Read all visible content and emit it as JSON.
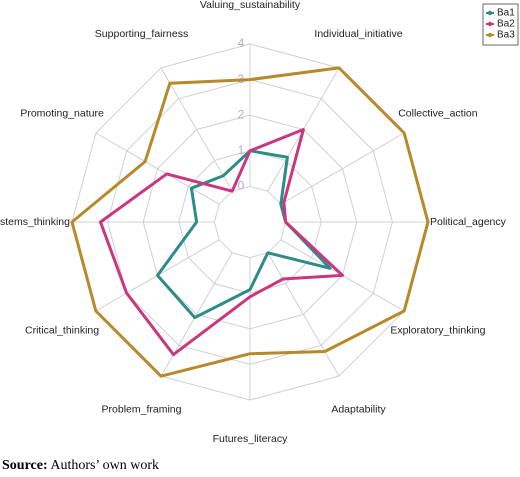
{
  "chart_data": {
    "type": "radar",
    "categories": [
      "Valuing_sustainability",
      "Individual_initiative",
      "Collective_action",
      "Political_agency",
      "Exploratory_thinking",
      "Adaptability",
      "Futures_literacy",
      "Problem_framing",
      "Critical_thinking",
      "Systems_thinking",
      "Promoting_nature",
      "Supporting_fairness"
    ],
    "series": [
      {
        "name": "Ba1",
        "color": "#2e8b88",
        "values": [
          1,
          1.1,
          0,
          0,
          1.6,
          0,
          0.9,
          2.1,
          2,
          0.5,
          0.9,
          0.5
        ]
      },
      {
        "name": "Ba2",
        "color": "#c8377f",
        "values": [
          1,
          2,
          0.1,
          0,
          2,
          0.85,
          1.1,
          3.3,
          3,
          3.2,
          1.7,
          0
        ]
      },
      {
        "name": "Ba3",
        "color": "#b8892a",
        "values": [
          3,
          4,
          4,
          4,
          4,
          3.2,
          2.7,
          4,
          4,
          4,
          2.4,
          3.5
        ]
      }
    ],
    "ylim": [
      -1,
      4
    ],
    "yticks": [
      0,
      1,
      2,
      3,
      4
    ],
    "grid": true,
    "legend": "top-right"
  },
  "caption_label": "Source:",
  "caption": "Authors’ own work"
}
